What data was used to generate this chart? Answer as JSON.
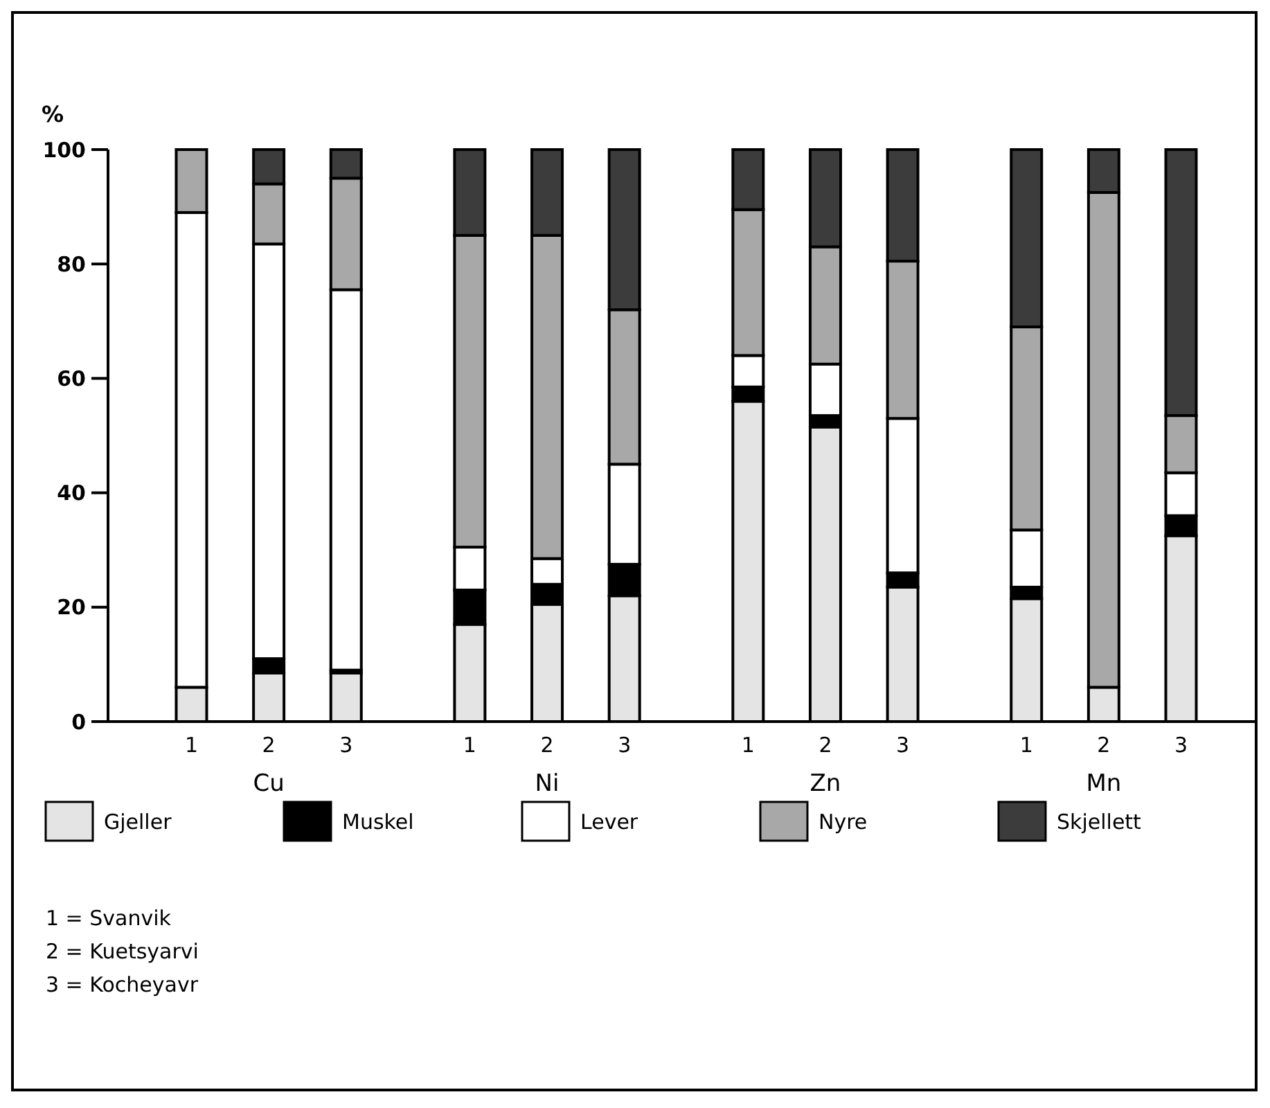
{
  "chart_data": {
    "type": "bar",
    "stacked": true,
    "ylabel": "%",
    "categories": [
      "1",
      "2",
      "3",
      "1",
      "2",
      "3",
      "1",
      "2",
      "3",
      "1",
      "2",
      "3"
    ],
    "series": [
      {
        "name": "Gjeller",
        "color": "#e4e4e4",
        "values": [
          6,
          8.5,
          8.5,
          17,
          20.5,
          22,
          56,
          51.5,
          23.5,
          21.5,
          6,
          32.5
        ]
      },
      {
        "name": "Muskel",
        "color": "#000000",
        "values": [
          0,
          2.5,
          0.5,
          6,
          3.5,
          5.5,
          2.5,
          2,
          2.5,
          2,
          0,
          3.5
        ]
      },
      {
        "name": "Lever",
        "color": "#ffffff",
        "values": [
          83,
          72.5,
          66.5,
          7.5,
          4.5,
          17.5,
          5.5,
          9,
          27,
          10,
          0,
          7.5
        ]
      },
      {
        "name": "Nyre",
        "color": "#a8a8a8",
        "values": [
          11,
          10.5,
          19.5,
          54.5,
          56.5,
          27,
          25.5,
          20.5,
          27.5,
          35.5,
          86.5,
          10
        ]
      },
      {
        "name": "Skjellett",
        "color": "#3c3c3c",
        "values": [
          0,
          6,
          5,
          15,
          15,
          28,
          10.5,
          17,
          19.5,
          31,
          7.5,
          46.5
        ]
      }
    ],
    "ylim": [
      0,
      100
    ],
    "yticks": [
      0,
      20,
      40,
      60,
      80,
      100
    ],
    "grid": false,
    "legend": "bottom",
    "annotations": [
      "Cu",
      "Ni",
      "Zn",
      "Mn",
      "1 = Svanvik",
      "2 = Kuetsyarvi",
      "3 = Kocheyavr"
    ]
  }
}
